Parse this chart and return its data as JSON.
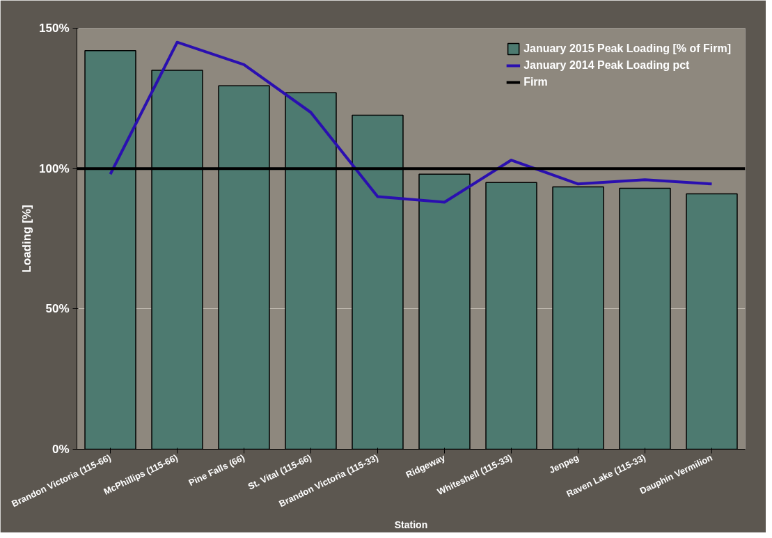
{
  "chart_data": {
    "type": "bar",
    "xlabel": "Station",
    "ylabel": "Loading [%]",
    "categories": [
      "Brandon Victoria (115-66)",
      "McPhillips (115-66)",
      "Pine Falls (66)",
      "St. Vital (115-66)",
      "Brandon Victoria (115-33)",
      "Ridgeway",
      "Whiteshell (115-33)",
      "Jenpeg",
      "Raven Lake (115-33)",
      "Dauphin Vermilion"
    ],
    "series": [
      {
        "name": "January 2015 Peak Loading [% of Firm]",
        "color": "#4d7a70",
        "values": [
          142,
          135,
          129.5,
          127,
          119,
          98,
          95,
          93.5,
          93,
          91
        ]
      },
      {
        "name": "January 2014 Peak Loading pct",
        "type": "line",
        "color": "#2a0fb0",
        "values": [
          98,
          145,
          137,
          120,
          90,
          88,
          103,
          94.5,
          96,
          94.5
        ]
      }
    ],
    "ylim": [
      0,
      150
    ],
    "yticks": [
      {
        "value": 0,
        "label": "0%"
      },
      {
        "value": 50,
        "label": "50%"
      },
      {
        "value": 100,
        "label": "100%"
      },
      {
        "value": 150,
        "label": "150%"
      }
    ],
    "ref_lines": [
      {
        "axis": "y",
        "value": 100,
        "label": "Firm",
        "color": "#000000"
      }
    ],
    "grid": "y",
    "legend": "top right"
  }
}
